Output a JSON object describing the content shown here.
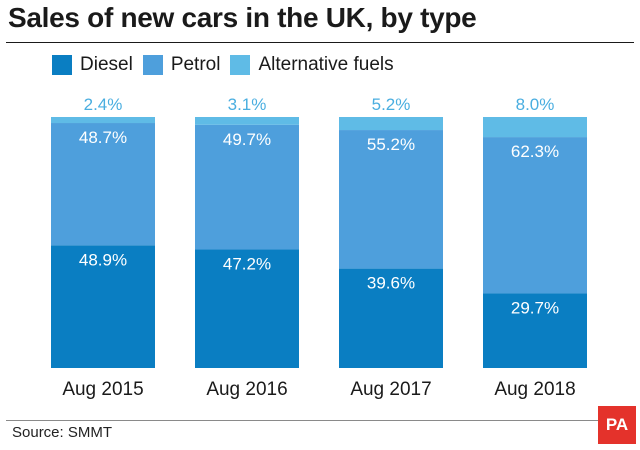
{
  "chart_data": {
    "type": "bar",
    "stacked": true,
    "title": "Sales of new cars in the UK, by type",
    "categories": [
      "Aug 2015",
      "Aug 2016",
      "Aug 2017",
      "Aug 2018"
    ],
    "series": [
      {
        "name": "Diesel",
        "values": [
          48.9,
          47.2,
          39.6,
          29.7
        ],
        "labels": [
          "48.9%",
          "47.2%",
          "39.6%",
          "29.7%"
        ],
        "color": "#0a7ec2"
      },
      {
        "name": "Petrol",
        "values": [
          48.7,
          49.7,
          55.2,
          62.3
        ],
        "labels": [
          "48.7%",
          "49.7%",
          "55.2%",
          "62.3%"
        ],
        "color": "#4e9fdc"
      },
      {
        "name": "Alternative fuels",
        "values": [
          2.4,
          3.1,
          5.2,
          8.0
        ],
        "labels": [
          "2.4%",
          "3.1%",
          "5.2%",
          "8.0%"
        ],
        "color": "#5fbbe6"
      }
    ],
    "ylim": [
      0,
      100
    ],
    "grid": false,
    "legend": "top-left"
  },
  "source": "Source: SMMT",
  "logo_text": "PA"
}
